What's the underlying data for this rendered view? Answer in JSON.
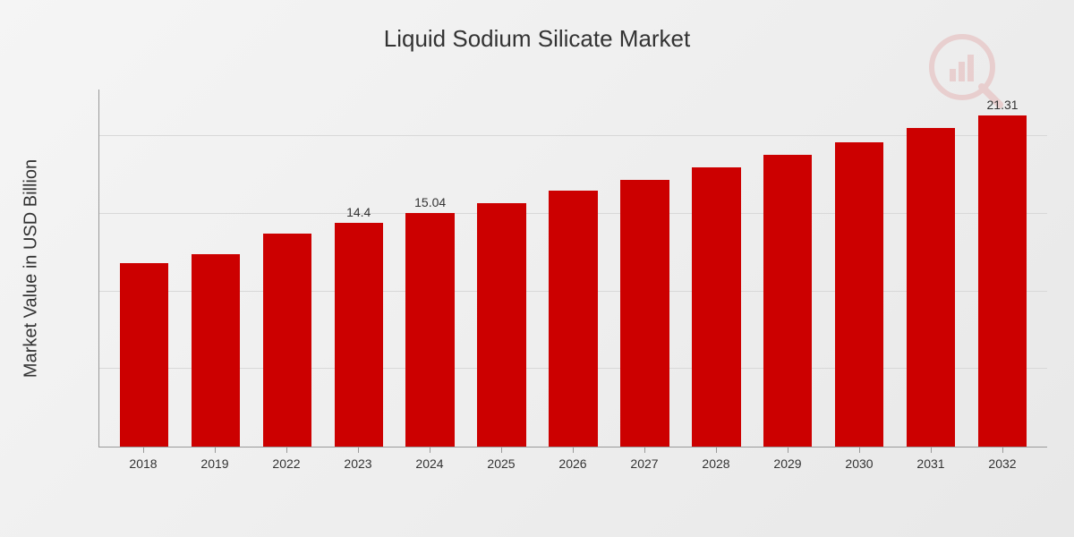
{
  "chart": {
    "type": "bar",
    "title": "Liquid Sodium Silicate Market",
    "ylabel": "Market Value in USD Billion",
    "categories": [
      "2018",
      "2019",
      "2022",
      "2023",
      "2024",
      "2025",
      "2026",
      "2027",
      "2028",
      "2029",
      "2030",
      "2031",
      "2032"
    ],
    "values": [
      11.8,
      12.4,
      13.7,
      14.4,
      15.04,
      15.7,
      16.5,
      17.2,
      18.0,
      18.8,
      19.6,
      20.5,
      21.31
    ],
    "value_labels": [
      "",
      "",
      "",
      "14.4",
      "15.04",
      "",
      "",
      "",
      "",
      "",
      "",
      "",
      "21.31"
    ],
    "bar_color": "#cc0000",
    "ylim_max": 23,
    "ylim_min": 0,
    "grid_lines": [
      5,
      10,
      15,
      20
    ],
    "grid_color": "#d8d8d8",
    "axis_color": "#999999",
    "background_gradient_start": "#f5f5f5",
    "background_gradient_end": "#e8e8e8",
    "title_fontsize": 26,
    "label_fontsize": 20,
    "tick_fontsize": 14,
    "value_label_fontsize": 14,
    "bar_width_pct": 68,
    "watermark_color": "#cc0000"
  }
}
